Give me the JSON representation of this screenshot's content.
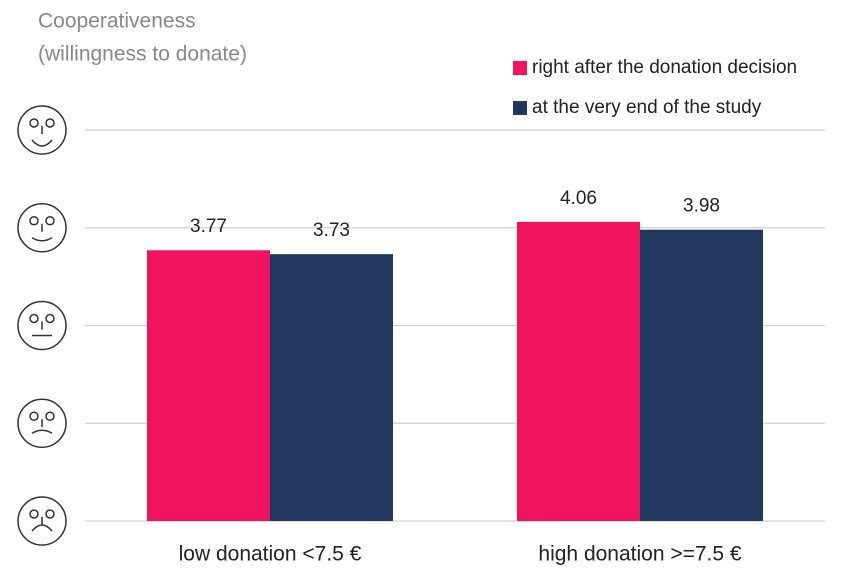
{
  "chart_data": {
    "type": "bar",
    "title": "Cooperativeness",
    "subtitle": "(willingness to donate)",
    "categories": [
      "low donation <7.5 €",
      "high donation >=7.5 €"
    ],
    "series": [
      {
        "name": "right after the donation decision",
        "color": "#f0145f",
        "values": [
          3.77,
          4.06
        ]
      },
      {
        "name": "at the very end of the study",
        "color": "#22375f",
        "values": [
          3.73,
          3.98
        ]
      }
    ],
    "ylim": [
      1,
      5
    ],
    "yticks": [
      1,
      2,
      3,
      4,
      5
    ],
    "grid": true,
    "legend": "top-right"
  }
}
